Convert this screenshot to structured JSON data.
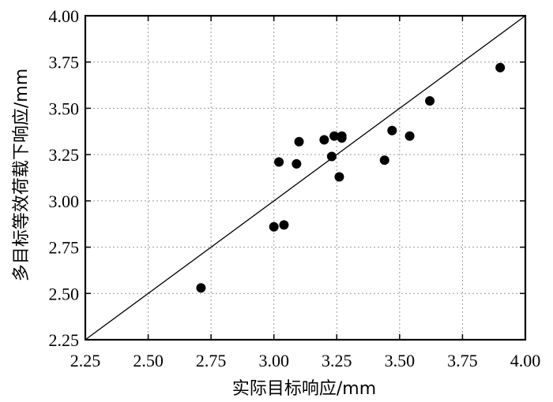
{
  "chart_data": {
    "type": "scatter",
    "xlabel": "实际目标响应/mm",
    "ylabel": "多目标等效荷载下响应/mm",
    "xlim": [
      2.25,
      4.0
    ],
    "ylim": [
      2.25,
      4.0
    ],
    "xticks": [
      "2.25",
      "2.50",
      "2.75",
      "3.00",
      "3.25",
      "3.50",
      "3.75",
      "4.00"
    ],
    "yticks": [
      "2.25",
      "2.50",
      "2.75",
      "3.00",
      "3.25",
      "3.50",
      "3.75",
      "4.00"
    ],
    "grid": true,
    "reference_line": {
      "from": [
        2.25,
        2.25
      ],
      "to": [
        4.0,
        4.0
      ]
    },
    "points": [
      {
        "x": 2.71,
        "y": 2.53
      },
      {
        "x": 3.0,
        "y": 2.86
      },
      {
        "x": 3.04,
        "y": 2.87
      },
      {
        "x": 3.02,
        "y": 3.21
      },
      {
        "x": 3.1,
        "y": 3.32
      },
      {
        "x": 3.09,
        "y": 3.2
      },
      {
        "x": 3.2,
        "y": 3.33
      },
      {
        "x": 3.23,
        "y": 3.24
      },
      {
        "x": 3.24,
        "y": 3.35
      },
      {
        "x": 3.26,
        "y": 3.13
      },
      {
        "x": 3.27,
        "y": 3.35
      },
      {
        "x": 3.27,
        "y": 3.34
      },
      {
        "x": 3.44,
        "y": 3.22
      },
      {
        "x": 3.47,
        "y": 3.38
      },
      {
        "x": 3.54,
        "y": 3.35
      },
      {
        "x": 3.62,
        "y": 3.54
      },
      {
        "x": 3.9,
        "y": 3.72
      }
    ]
  }
}
